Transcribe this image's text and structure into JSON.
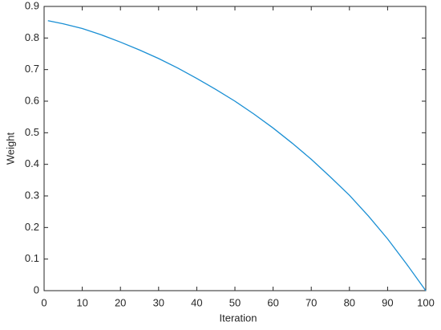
{
  "chart_data": {
    "type": "line",
    "xlabel": "Iteration",
    "ylabel": "Weight",
    "x": [
      1,
      5,
      10,
      15,
      20,
      25,
      30,
      35,
      40,
      45,
      50,
      55,
      60,
      65,
      70,
      75,
      80,
      85,
      90,
      95,
      100
    ],
    "series": [
      {
        "color": "#1a8fd4",
        "values": [
          0.855,
          0.845,
          0.83,
          0.81,
          0.787,
          0.762,
          0.735,
          0.705,
          0.672,
          0.637,
          0.6,
          0.559,
          0.515,
          0.467,
          0.416,
          0.36,
          0.302,
          0.236,
          0.164,
          0.084,
          0.0
        ]
      }
    ],
    "xlim": [
      0,
      100
    ],
    "xticks": [
      0,
      10,
      20,
      30,
      40,
      50,
      60,
      70,
      80,
      90,
      100
    ],
    "ylim": [
      0,
      0.9
    ],
    "yticks": [
      0,
      0.1,
      0.2,
      0.3,
      0.4,
      0.5,
      0.6,
      0.7,
      0.8,
      0.9
    ]
  }
}
